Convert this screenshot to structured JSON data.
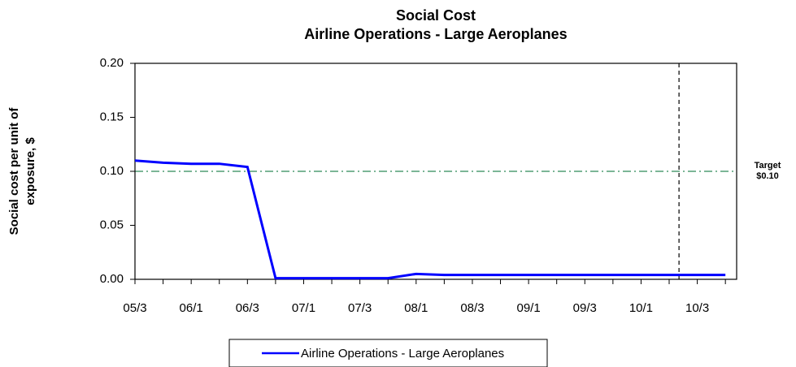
{
  "chart_data": {
    "type": "line",
    "title": "Social Cost",
    "subtitle": "Airline Operations - Large Aeroplanes",
    "ylabel": [
      "Social cost per unit of",
      "exposure, $"
    ],
    "categories": [
      "05/3",
      null,
      "06/1",
      null,
      "06/3",
      null,
      "07/1",
      null,
      "07/3",
      null,
      "08/1",
      null,
      "08/3",
      null,
      "09/1",
      null,
      "09/3",
      null,
      "10/1",
      null,
      "10/3",
      null
    ],
    "series": [
      {
        "name": "Airline Operations - Large Aeroplanes",
        "color": "#0000ff",
        "values": [
          0.11,
          0.108,
          0.107,
          0.107,
          0.104,
          0.001,
          0.001,
          0.001,
          0.001,
          0.001,
          0.005,
          0.004,
          0.004,
          0.004,
          0.004,
          0.004,
          0.004,
          0.004,
          0.004,
          0.004,
          0.004,
          0.004
        ]
      }
    ],
    "ylim": [
      0,
      0.2
    ],
    "yticks": [
      {
        "value": 0,
        "label": "0.00"
      },
      {
        "value": 0.05,
        "label": "0.05"
      },
      {
        "value": 0.1,
        "label": "0.10"
      },
      {
        "value": 0.15,
        "label": "0.15"
      },
      {
        "value": 0.2,
        "label": "0.20"
      }
    ],
    "xlim": [
      0,
      21.4
    ],
    "target": {
      "value": 0.1,
      "label": [
        "Target",
        "$0.10"
      ],
      "color": "#2e8b57"
    },
    "vline_x": 19.35,
    "legend": "bottom"
  }
}
